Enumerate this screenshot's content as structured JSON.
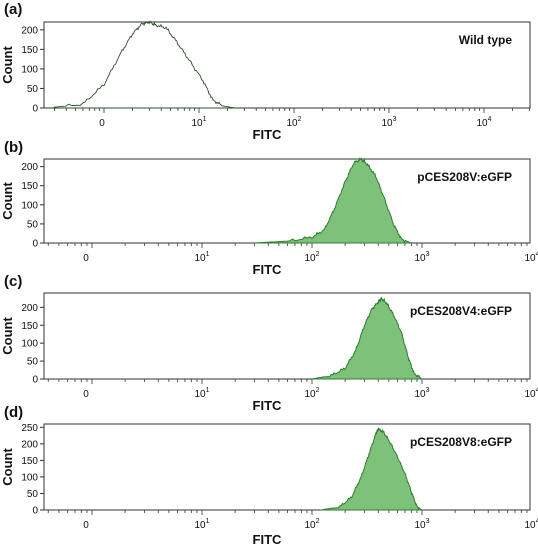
{
  "chart_data": [
    {
      "type": "area",
      "panel_label": "(a)",
      "series_name": "Wild type",
      "ylabel": "Count",
      "xlabel": "FITC",
      "x_scale": "log",
      "ylim": [
        0,
        220
      ],
      "yticks": [
        0,
        50,
        100,
        150,
        200
      ],
      "xtick_labels": [
        {
          "base": "0",
          "exp": ""
        },
        {
          "base": "10",
          "exp": "1"
        },
        {
          "base": "10",
          "exp": "2"
        },
        {
          "base": "10",
          "exp": "3"
        },
        {
          "base": "10",
          "exp": "4"
        }
      ],
      "filled": false,
      "color": "#2f4f2f",
      "fill": "none",
      "peak": 3,
      "peak_count": 220,
      "x": [
        0.3,
        0.6,
        1,
        1.5,
        2,
        2.5,
        3,
        3.5,
        4.5,
        6,
        8,
        11,
        14,
        18,
        24
      ],
      "y": [
        2,
        10,
        60,
        140,
        190,
        215,
        220,
        212,
        205,
        165,
        120,
        70,
        20,
        5,
        0
      ]
    },
    {
      "type": "area",
      "panel_label": "(b)",
      "series_name": "pCES208V:eGFP",
      "ylabel": "Count",
      "xlabel": "FITC",
      "x_scale": "log",
      "ylim": [
        0,
        220
      ],
      "yticks": [
        0,
        50,
        100,
        150,
        200
      ],
      "xtick_labels": [
        {
          "base": "0",
          "exp": ""
        },
        {
          "base": "10",
          "exp": "1"
        },
        {
          "base": "10",
          "exp": "2"
        },
        {
          "base": "10",
          "exp": "3"
        },
        {
          "base": "10",
          "exp": "4"
        },
        {
          "base": "10",
          "exp": "5"
        }
      ],
      "filled": true,
      "color": "#2e7d2e",
      "fill": "#7dc17a",
      "peak": 280,
      "peak_count": 220,
      "x": [
        30,
        60,
        100,
        130,
        160,
        200,
        240,
        280,
        320,
        380,
        450,
        550,
        650,
        800
      ],
      "y": [
        0,
        5,
        15,
        35,
        90,
        160,
        210,
        220,
        205,
        175,
        120,
        50,
        10,
        0
      ]
    },
    {
      "type": "area",
      "panel_label": "(c)",
      "series_name": "pCES208V4:eGFP",
      "ylabel": "Count",
      "xlabel": "FITC",
      "x_scale": "log",
      "ylim": [
        0,
        240
      ],
      "yticks": [
        0,
        50,
        100,
        150,
        200
      ],
      "xtick_labels": [
        {
          "base": "0",
          "exp": ""
        },
        {
          "base": "10",
          "exp": "1"
        },
        {
          "base": "10",
          "exp": "2"
        },
        {
          "base": "10",
          "exp": "3"
        },
        {
          "base": "10",
          "exp": "4"
        },
        {
          "base": "10",
          "exp": "5"
        }
      ],
      "filled": true,
      "color": "#2e7d2e",
      "fill": "#7dc17a",
      "peak": 430,
      "peak_count": 225,
      "x": [
        100,
        150,
        200,
        250,
        300,
        350,
        400,
        430,
        480,
        550,
        650,
        750,
        850,
        1000
      ],
      "y": [
        0,
        10,
        30,
        80,
        150,
        195,
        215,
        225,
        210,
        180,
        130,
        60,
        15,
        0
      ]
    },
    {
      "type": "area",
      "panel_label": "(d)",
      "series_name": "pCES208V8:eGFP",
      "ylabel": "Count",
      "xlabel": "FITC",
      "x_scale": "log",
      "ylim": [
        0,
        260
      ],
      "yticks": [
        0,
        50,
        100,
        150,
        200,
        250
      ],
      "xtick_labels": [
        {
          "base": "0",
          "exp": ""
        },
        {
          "base": "10",
          "exp": "1"
        },
        {
          "base": "10",
          "exp": "2"
        },
        {
          "base": "10",
          "exp": "3"
        },
        {
          "base": "10",
          "exp": "4"
        },
        {
          "base": "10",
          "exp": "5"
        }
      ],
      "filled": true,
      "color": "#2e7d2e",
      "fill": "#7dc17a",
      "peak": 400,
      "peak_count": 245,
      "x": [
        120,
        180,
        230,
        280,
        330,
        380,
        400,
        450,
        520,
        600,
        700,
        800,
        900,
        1000
      ],
      "y": [
        0,
        10,
        40,
        100,
        170,
        230,
        245,
        235,
        200,
        160,
        110,
        55,
        10,
        0
      ]
    }
  ]
}
